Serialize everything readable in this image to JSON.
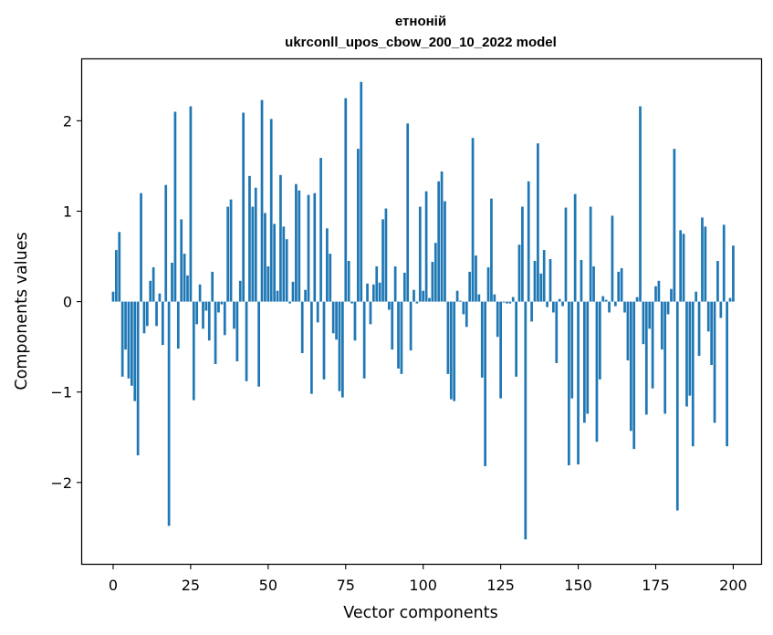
{
  "chart_data": {
    "type": "bar",
    "title_lines": [
      "етноній",
      "ukrconll_upos_cbow_200_10_2022 model"
    ],
    "xlabel": "Vector components",
    "ylabel": "Components values",
    "xlim": [
      -10,
      209
    ],
    "ylim": [
      -2.9,
      2.68
    ],
    "xticks": [
      0,
      25,
      50,
      75,
      100,
      125,
      150,
      175,
      200
    ],
    "yticks": [
      -2,
      -1,
      0,
      1,
      2
    ],
    "ytick_labels": [
      "−2",
      "−1",
      "0",
      "1",
      "2"
    ],
    "bar_color": "#1f77b4",
    "grid": false,
    "legend": "none",
    "values": [
      0.11,
      0.57,
      0.77,
      -0.83,
      -0.53,
      -0.85,
      -0.93,
      -1.1,
      -1.7,
      1.2,
      -0.35,
      -0.27,
      0.23,
      0.38,
      -0.27,
      0.09,
      -0.48,
      1.29,
      -2.48,
      0.43,
      2.1,
      -0.52,
      0.91,
      0.53,
      0.29,
      2.16,
      -1.09,
      -0.25,
      0.19,
      -0.3,
      -0.1,
      -0.43,
      0.33,
      -0.69,
      -0.12,
      -0.03,
      -0.37,
      1.05,
      1.13,
      -0.3,
      -0.66,
      0.23,
      2.09,
      -0.88,
      1.39,
      1.05,
      1.26,
      -0.94,
      2.23,
      0.98,
      0.39,
      2.02,
      0.86,
      0.12,
      1.4,
      0.83,
      0.69,
      -0.02,
      0.22,
      1.3,
      1.23,
      -0.57,
      0.13,
      1.18,
      -1.02,
      1.2,
      -0.23,
      1.59,
      -0.86,
      0.81,
      0.53,
      -0.35,
      -0.42,
      -0.99,
      -1.06,
      2.25,
      0.45,
      -0.02,
      -0.43,
      1.69,
      2.43,
      -0.85,
      0.2,
      -0.25,
      0.19,
      0.39,
      0.21,
      0.91,
      1.03,
      -0.09,
      -0.53,
      0.39,
      -0.74,
      -0.8,
      0.32,
      1.97,
      -0.54,
      0.13,
      -0.02,
      1.05,
      0.12,
      1.22,
      0.04,
      0.44,
      0.65,
      1.33,
      1.44,
      1.11,
      -0.8,
      -1.08,
      -1.1,
      0.12,
      0.01,
      -0.14,
      -0.28,
      0.33,
      1.81,
      0.51,
      0.08,
      -0.84,
      -1.82,
      0.38,
      1.14,
      0.08,
      -0.39,
      -1.07,
      -0.01,
      -0.02,
      -0.02,
      0.05,
      -0.83,
      0.63,
      1.05,
      -2.63,
      1.33,
      -0.22,
      0.45,
      1.75,
      0.31,
      0.57,
      -0.06,
      0.47,
      -0.12,
      -0.68,
      0.03,
      -0.05,
      1.04,
      -1.81,
      -1.07,
      1.19,
      -1.8,
      0.46,
      -1.34,
      -1.24,
      1.05,
      0.39,
      -1.55,
      -0.86,
      0.06,
      0.02,
      -0.12,
      0.95,
      -0.05,
      0.33,
      0.37,
      -0.12,
      -0.65,
      -1.43,
      -1.63,
      0.05,
      2.16,
      -0.47,
      -1.25,
      -0.3,
      -0.96,
      0.17,
      0.23,
      -0.53,
      -1.24,
      -0.14,
      0.14,
      1.69,
      -2.31,
      0.79,
      0.75,
      -1.16,
      -1.04,
      -1.6,
      0.11,
      -0.6,
      0.93,
      0.83,
      -0.33,
      -0.7,
      -1.34,
      0.45,
      -0.18,
      0.85,
      -1.6,
      0.04,
      0.62
    ]
  }
}
